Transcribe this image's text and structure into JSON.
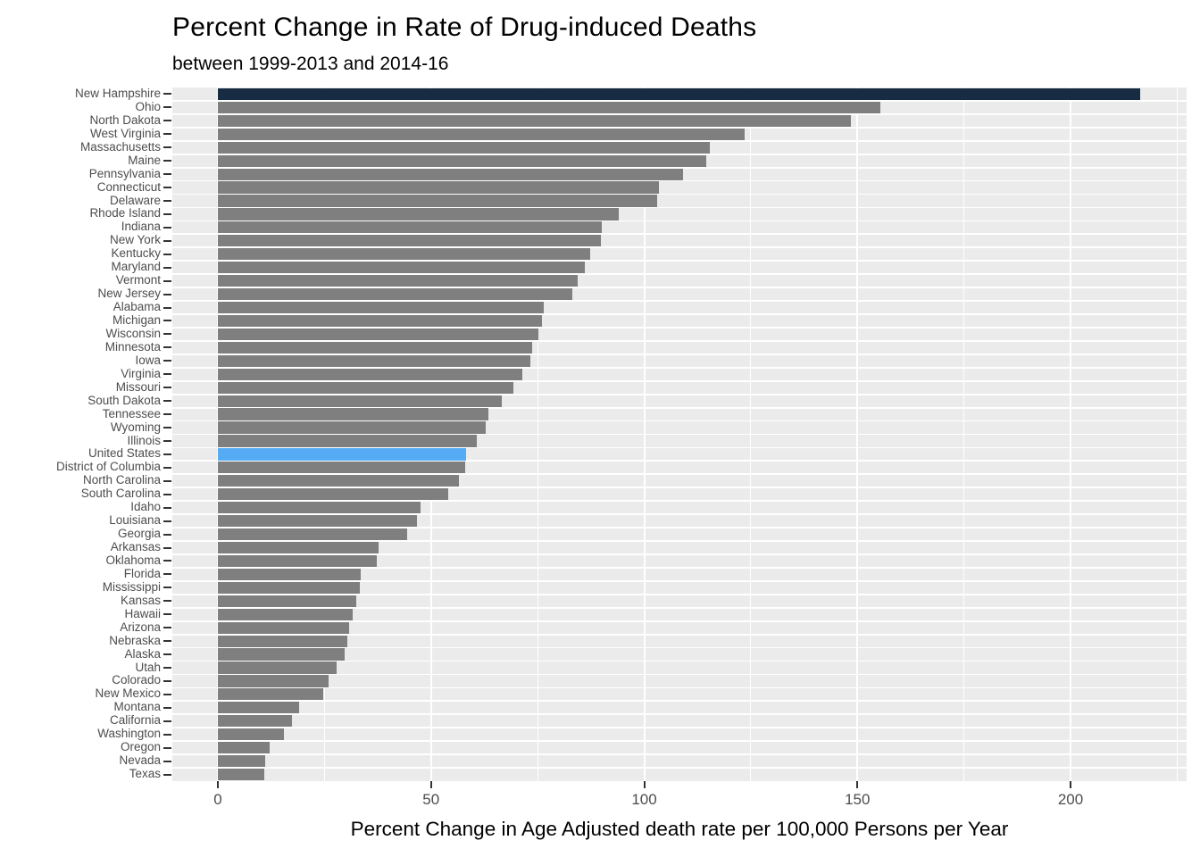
{
  "title": "Percent Change in Rate of Drug-induced Deaths",
  "subtitle": "between 1999-2013 and 2014-16",
  "chart_data": {
    "type": "bar",
    "orientation": "horizontal",
    "title": "Percent Change in Rate of Drug-induced Deaths",
    "subtitle": "between 1999-2013 and 2014-16",
    "xlabel": "Percent Change in Age Adjusted death rate per 100,000 Persons per Year",
    "ylabel": "",
    "categories": [
      "New Hampshire",
      "Ohio",
      "North Dakota",
      "West Virginia",
      "Massachusetts",
      "Maine",
      "Pennsylvania",
      "Connecticut",
      "Delaware",
      "Rhode Island",
      "Indiana",
      "New York",
      "Kentucky",
      "Maryland",
      "Vermont",
      "New Jersey",
      "Alabama",
      "Michigan",
      "Wisconsin",
      "Minnesota",
      "Iowa",
      "Virginia",
      "Missouri",
      "South Dakota",
      "Tennessee",
      "Wyoming",
      "Illinois",
      "United States",
      "District of Columbia",
      "North Carolina",
      "South Carolina",
      "Idaho",
      "Louisiana",
      "Georgia",
      "Arkansas",
      "Oklahoma",
      "Florida",
      "Mississippi",
      "Kansas",
      "Hawaii",
      "Arizona",
      "Nebraska",
      "Alaska",
      "Utah",
      "Colorado",
      "New Mexico",
      "Montana",
      "California",
      "Washington",
      "Oregon",
      "Nevada",
      "Texas"
    ],
    "values": [
      216.4,
      155.3,
      148.4,
      123.6,
      115.4,
      114.5,
      109.1,
      103.5,
      103.0,
      94.1,
      90.1,
      89.9,
      87.3,
      86.1,
      84.4,
      83.1,
      76.5,
      76.0,
      75.1,
      73.7,
      73.3,
      71.5,
      69.3,
      66.6,
      63.4,
      62.8,
      60.7,
      58.3,
      58.0,
      56.6,
      54.0,
      47.5,
      46.7,
      44.3,
      37.6,
      37.3,
      33.5,
      33.3,
      32.5,
      31.7,
      30.8,
      30.3,
      29.7,
      27.8,
      26.0,
      24.7,
      19.1,
      17.3,
      15.6,
      12.1,
      11.2,
      10.8
    ],
    "x_ticks": [
      0,
      50,
      100,
      150,
      200
    ],
    "x_minor_ticks": [
      25,
      75,
      125,
      175,
      225
    ],
    "xlim": [
      -10.8,
      227.2
    ],
    "grid": true,
    "legend": "none",
    "colors": {
      "bar_default": "#7F7F7F",
      "panel_background": "#EBEBEB",
      "gridline": "#FFFFFF",
      "axis_text": "#4D4D4D",
      "tick_mark": "#333333",
      "title_text": "#000000"
    },
    "highlights": {
      "New Hampshire": "#172B42",
      "United States": "#55ACF5"
    }
  }
}
